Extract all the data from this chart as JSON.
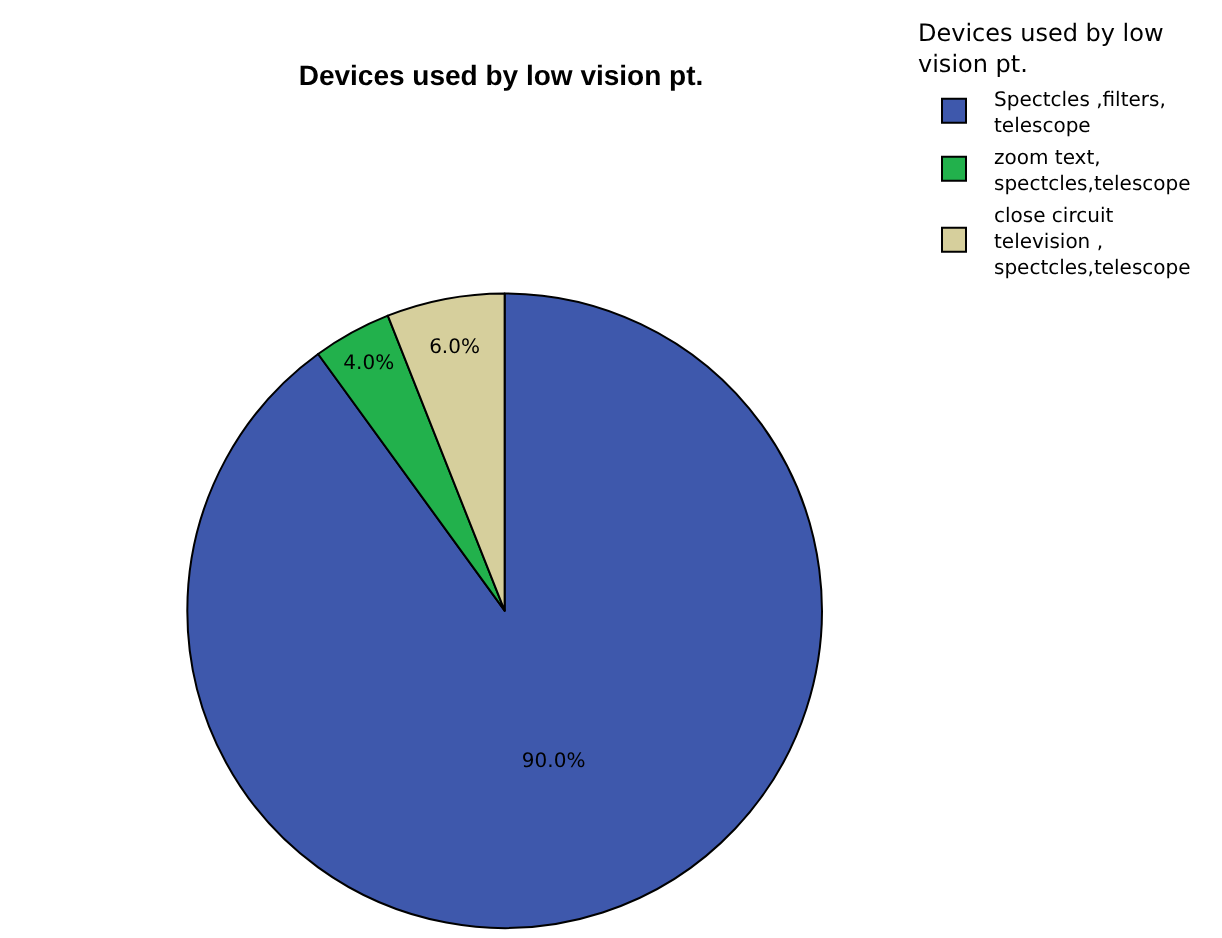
{
  "chart_data": {
    "type": "pie",
    "title": "Devices used by low vision pt.",
    "legend_title": "Devices used by low vision pt.",
    "categories": [
      "Spectcles ,filters, telescope",
      "zoom text, spectcles,telescope",
      "close circuit television , spectcles,telescope"
    ],
    "values": [
      90,
      4,
      6
    ],
    "colors": [
      "#3e58ac",
      "#22b14c",
      "#d6cf9c"
    ],
    "value_labels": [
      "90.0%",
      "4.0%",
      "6.0%"
    ],
    "legend": "top right"
  }
}
